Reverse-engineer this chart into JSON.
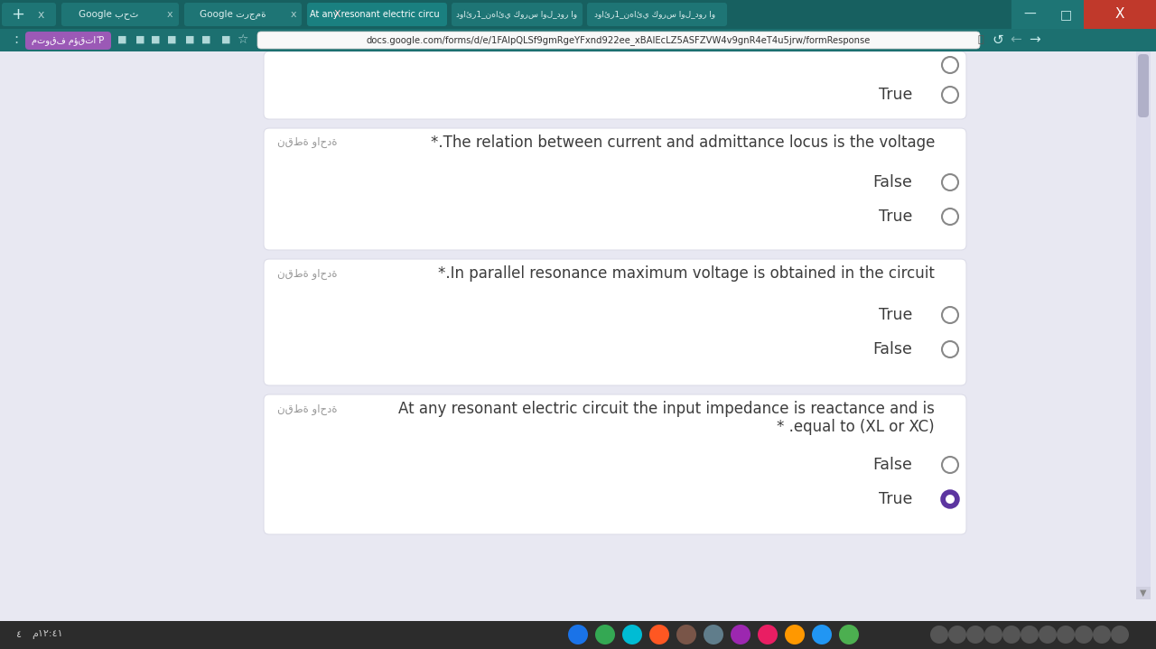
{
  "bg_color": "#e8e8f2",
  "card_color": "#ffffff",
  "card_border_color": "#dcdce8",
  "text_color": "#3c3c3c",
  "label_color": "#999999",
  "radio_selected_color": "#5c35a0",
  "red_star_color": "#e53935",
  "cards": [
    {
      "question": "*.The relation between current and admittance locus is the voltage",
      "label": "نقطة واحدة",
      "options": [
        "False",
        "True"
      ],
      "selected": null
    },
    {
      "question": "*.In parallel resonance maximum voltage is obtained in the circuit",
      "label": "نقطة واحدة",
      "options": [
        "True",
        "False"
      ],
      "selected": null
    },
    {
      "question_line1": "At any resonant electric circuit the input impedance is reactance and is",
      "question_line2": "* .equal to (XL or XC)",
      "label": "نقطة واحدة",
      "options": [
        "False",
        "True"
      ],
      "selected": "True"
    }
  ],
  "tab_bar_color": "#1a6b6b",
  "tab_bar_bottom_color": "#155f5f",
  "active_tab_color": "#1a7070",
  "toolbar_color": "#1e7474",
  "address_bar_color": "#f2f2f2",
  "address_bar_bg": "#ffffff",
  "bottom_bar_color": "#2a2a2a",
  "scrollbar_track": "#d8d8e8",
  "scrollbar_thumb": "#b0b0c0",
  "page_bg": "#e8e8f2"
}
